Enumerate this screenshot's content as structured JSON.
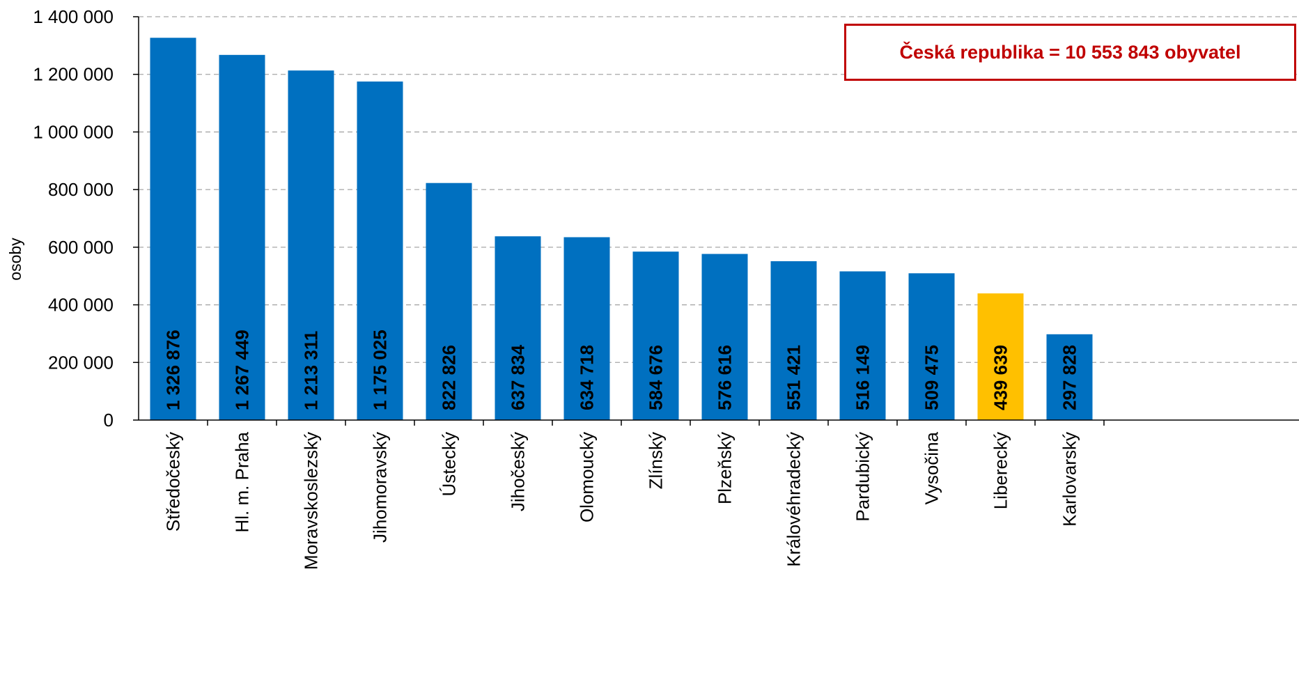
{
  "annotation": "Česká republika = 10 553 843 obyvatel",
  "colors": {
    "bar": "#0070c0",
    "highlight": "#ffc000",
    "grid": "#a6a6a6",
    "annotation": "#c00000"
  },
  "chart_data": {
    "type": "bar",
    "title": "",
    "xlabel": "",
    "ylabel": "osoby",
    "ylim": [
      0,
      1400000
    ],
    "yticks": [
      0,
      200000,
      400000,
      600000,
      800000,
      1000000,
      1200000,
      1400000
    ],
    "ytick_labels": [
      "0",
      "200 000",
      "400 000",
      "600 000",
      "800 000",
      "1 000 000",
      "1 200 000",
      "1 400 000"
    ],
    "grid": true,
    "categories": [
      "Středočeský",
      "Hl. m. Praha",
      "Moravskoslezský",
      "Jihomoravský",
      "Ústecký",
      "Jihočeský",
      "Olomoucký",
      "Zlínský",
      "Plzeňský",
      "Královéhradecký",
      "Pardubický",
      "Vysočina",
      "Liberecký",
      "Karlovarský"
    ],
    "values": [
      1326876,
      1267449,
      1213311,
      1175025,
      822826,
      637834,
      634718,
      584676,
      576616,
      551421,
      516149,
      509475,
      439639,
      297828
    ],
    "value_labels": [
      "1 326 876",
      "1 267 449",
      "1 213 311",
      "1 175 025",
      "822 826",
      "637 834",
      "634 718",
      "584 676",
      "576 616",
      "551 421",
      "516 149",
      "509 475",
      "439 639",
      "297 828"
    ],
    "highlight_category": "Liberecký"
  }
}
